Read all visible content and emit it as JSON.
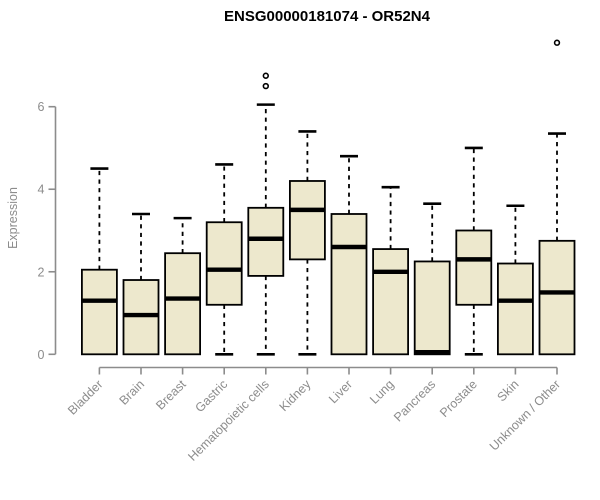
{
  "chart_data": {
    "type": "boxplot",
    "title": "ENSG00000181074 - OR52N4",
    "xlabel": "",
    "ylabel": "Expression",
    "ylim": [
      0,
      6
    ],
    "yticks": [
      0,
      2,
      4,
      6
    ],
    "grid": false,
    "legend": "none",
    "colors": {
      "box_fill": "#EDE8CD",
      "box_border": "#000000",
      "median": "#000000",
      "whisker": "#000000",
      "outlier": "#000000",
      "axis": "#8C8C8C",
      "tick_label": "#8C8C8C",
      "title": "#000000",
      "background": "#FFFFFF"
    },
    "categories": [
      "Bladder",
      "Brain",
      "Breast",
      "Gastric",
      "Hematopoietic cells",
      "Kidney",
      "Liver",
      "Lung",
      "Pancreas",
      "Prostate",
      "Skin",
      "Unknown / Other"
    ],
    "series": [
      {
        "category": "Bladder",
        "lo": 0,
        "q1": 0,
        "median": 1.3,
        "q3": 2.05,
        "hi": 4.5,
        "outliers": []
      },
      {
        "category": "Brain",
        "lo": 0,
        "q1": 0,
        "median": 0.95,
        "q3": 1.8,
        "hi": 3.4,
        "outliers": []
      },
      {
        "category": "Breast",
        "lo": 0,
        "q1": 0,
        "median": 1.35,
        "q3": 2.45,
        "hi": 3.3,
        "outliers": []
      },
      {
        "category": "Gastric",
        "lo": 0,
        "q1": 1.2,
        "median": 2.05,
        "q3": 3.2,
        "hi": 4.6,
        "outliers": []
      },
      {
        "category": "Hematopoietic cells",
        "lo": 0,
        "q1": 1.9,
        "median": 2.8,
        "q3": 3.55,
        "hi": 6.05,
        "outliers": [
          6.5,
          6.75
        ]
      },
      {
        "category": "Kidney",
        "lo": 0,
        "q1": 2.3,
        "median": 3.5,
        "q3": 4.2,
        "hi": 5.4,
        "outliers": []
      },
      {
        "category": "Liver",
        "lo": 0,
        "q1": 0,
        "median": 2.6,
        "q3": 3.4,
        "hi": 4.8,
        "outliers": []
      },
      {
        "category": "Lung",
        "lo": 0,
        "q1": 0,
        "median": 2.0,
        "q3": 2.55,
        "hi": 4.05,
        "outliers": []
      },
      {
        "category": "Pancreas",
        "lo": 0,
        "q1": 0,
        "median": 0.05,
        "q3": 2.25,
        "hi": 3.65,
        "outliers": []
      },
      {
        "category": "Prostate",
        "lo": 0,
        "q1": 1.2,
        "median": 2.3,
        "q3": 3.0,
        "hi": 5.0,
        "outliers": []
      },
      {
        "category": "Skin",
        "lo": 0,
        "q1": 0,
        "median": 1.3,
        "q3": 2.2,
        "hi": 3.6,
        "outliers": []
      },
      {
        "category": "Unknown / Other",
        "lo": 0,
        "q1": 0,
        "median": 1.5,
        "q3": 2.75,
        "hi": 5.35,
        "outliers": [
          7.55
        ]
      }
    ]
  }
}
